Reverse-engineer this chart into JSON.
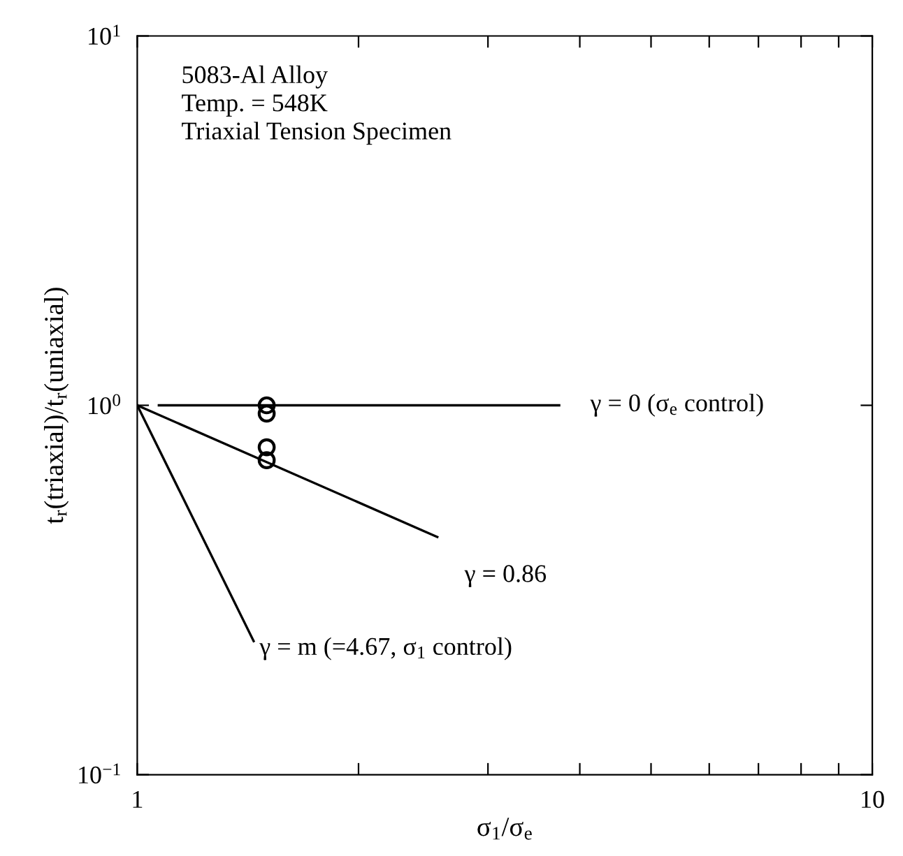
{
  "chart_data": {
    "type": "line",
    "xlabel": "σ$_{1}$/σ$_{e}$",
    "ylabel": "t$_{r}$(triaxial)/t$_{r}$(uniaxial)",
    "log": "xy",
    "xlim": [
      1,
      10
    ],
    "ylim": [
      0.1,
      10
    ],
    "xticks": [
      1,
      {
        "value": 2,
        "label": null
      },
      {
        "value": 3,
        "label": null
      },
      {
        "value": 4,
        "label": null
      },
      {
        "value": 5,
        "label": null
      },
      {
        "value": 6,
        "label": null
      },
      {
        "value": 7,
        "label": null
      },
      {
        "value": 8,
        "label": null
      },
      {
        "value": 9,
        "label": null
      },
      10
    ],
    "yticks": [
      {
        "value": 0.1,
        "label": "10$^{−1}$"
      },
      {
        "value": 1,
        "label": "10$^{0}$"
      },
      {
        "value": 10,
        "label": "10$^{1}$"
      }
    ],
    "grid": false,
    "legend": false,
    "series": [
      {
        "color": "#000000",
        "x": [
          1.07,
          3.75
        ],
        "values": [
          1.0,
          1.0
        ],
        "marker": "none"
      },
      {
        "color": "#000000",
        "x": [
          1,
          2.56
        ],
        "values": [
          1.0,
          0.44
        ],
        "marker": "none"
      },
      {
        "color": "#000000",
        "x": [
          1,
          1.44
        ],
        "values": [
          1.0,
          0.23
        ],
        "marker": "none"
      },
      {
        "type": "scatter",
        "color": "#000000",
        "x": [
          1.5,
          1.5,
          1.5,
          1.5
        ],
        "values": [
          1.0,
          0.95,
          0.77,
          0.71
        ],
        "marker": "circle"
      }
    ],
    "annotations": [
      "5083-Al Alloy\nTemp. = 548K\nTriaxial Tension Specimen",
      "γ = 0 (σ$_{e}$ control)",
      "γ = 0.86",
      "γ = m (=4.67, σ$_{1}$ control)"
    ]
  }
}
